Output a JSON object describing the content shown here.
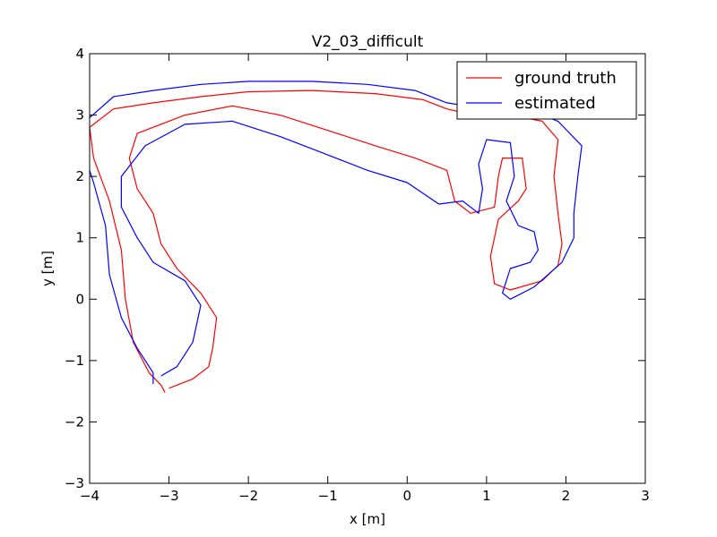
{
  "chart_data": {
    "type": "line",
    "title": "V2_03_difficult",
    "xlabel": "x [m]",
    "ylabel": "y [m]",
    "xlim": [
      -4,
      3
    ],
    "ylim": [
      -3,
      4
    ],
    "xticks": [
      -4,
      -3,
      -2,
      -1,
      0,
      1,
      2,
      3
    ],
    "yticks": [
      -3,
      -2,
      -1,
      0,
      1,
      2,
      3,
      4
    ],
    "xtick_labels": [
      "−4",
      "−3",
      "−2",
      "−1",
      "0",
      "1",
      "2",
      "3"
    ],
    "ytick_labels": [
      "−3",
      "−2",
      "−1",
      "0",
      "1",
      "2",
      "3",
      "4"
    ],
    "grid": false,
    "legend_position": "upper right",
    "series": [
      {
        "name": "ground truth",
        "color": "#ff0000",
        "points": [
          [
            -3.05,
            -1.52
          ],
          [
            -3.1,
            -1.4
          ],
          [
            -3.25,
            -1.2
          ],
          [
            -3.45,
            -0.7
          ],
          [
            -3.55,
            0.0
          ],
          [
            -3.6,
            0.8
          ],
          [
            -3.75,
            1.6
          ],
          [
            -3.95,
            2.3
          ],
          [
            -4.0,
            2.8
          ],
          [
            -3.7,
            3.1
          ],
          [
            -3.2,
            3.2
          ],
          [
            -2.6,
            3.3
          ],
          [
            -2.0,
            3.38
          ],
          [
            -1.2,
            3.4
          ],
          [
            -0.4,
            3.35
          ],
          [
            0.2,
            3.25
          ],
          [
            0.5,
            3.1
          ],
          [
            1.0,
            2.95
          ],
          [
            1.5,
            2.95
          ],
          [
            1.7,
            2.9
          ],
          [
            1.9,
            2.6
          ],
          [
            1.85,
            2.0
          ],
          [
            1.9,
            1.4
          ],
          [
            1.95,
            0.9
          ],
          [
            1.9,
            0.55
          ],
          [
            1.7,
            0.3
          ],
          [
            1.3,
            0.15
          ],
          [
            1.1,
            0.25
          ],
          [
            1.05,
            0.7
          ],
          [
            1.15,
            1.3
          ],
          [
            1.4,
            1.6
          ],
          [
            1.5,
            1.8
          ],
          [
            1.45,
            2.3
          ],
          [
            1.2,
            2.3
          ],
          [
            1.15,
            2.0
          ],
          [
            1.1,
            1.5
          ],
          [
            0.8,
            1.4
          ],
          [
            0.6,
            1.6
          ],
          [
            0.5,
            2.1
          ],
          [
            0.1,
            2.3
          ],
          [
            -0.4,
            2.5
          ],
          [
            -1.0,
            2.75
          ],
          [
            -1.6,
            3.0
          ],
          [
            -2.2,
            3.15
          ],
          [
            -2.8,
            3.0
          ],
          [
            -3.4,
            2.7
          ],
          [
            -3.5,
            2.3
          ],
          [
            -3.4,
            1.8
          ],
          [
            -3.2,
            1.4
          ],
          [
            -3.1,
            0.9
          ],
          [
            -2.9,
            0.5
          ],
          [
            -2.6,
            0.1
          ],
          [
            -2.4,
            -0.3
          ],
          [
            -2.45,
            -0.8
          ],
          [
            -2.5,
            -1.1
          ],
          [
            -2.7,
            -1.3
          ],
          [
            -3.0,
            -1.45
          ]
        ]
      },
      {
        "name": "estimated",
        "color": "#0000ff",
        "points": [
          [
            -3.2,
            -1.38
          ],
          [
            -3.2,
            -1.2
          ],
          [
            -3.4,
            -0.8
          ],
          [
            -3.6,
            -0.3
          ],
          [
            -3.75,
            0.4
          ],
          [
            -3.8,
            1.2
          ],
          [
            -3.95,
            1.9
          ],
          [
            -4.1,
            2.5
          ],
          [
            -4.05,
            2.9
          ],
          [
            -3.7,
            3.3
          ],
          [
            -3.2,
            3.4
          ],
          [
            -2.6,
            3.5
          ],
          [
            -2.0,
            3.55
          ],
          [
            -1.2,
            3.55
          ],
          [
            -0.5,
            3.5
          ],
          [
            0.1,
            3.4
          ],
          [
            0.5,
            3.2
          ],
          [
            1.0,
            3.1
          ],
          [
            1.5,
            3.1
          ],
          [
            1.9,
            2.9
          ],
          [
            2.2,
            2.5
          ],
          [
            2.15,
            2.0
          ],
          [
            2.1,
            1.4
          ],
          [
            2.1,
            1.0
          ],
          [
            1.95,
            0.6
          ],
          [
            1.6,
            0.2
          ],
          [
            1.3,
            0.0
          ],
          [
            1.2,
            0.1
          ],
          [
            1.3,
            0.5
          ],
          [
            1.55,
            0.6
          ],
          [
            1.65,
            0.8
          ],
          [
            1.6,
            1.1
          ],
          [
            1.4,
            1.2
          ],
          [
            1.25,
            1.6
          ],
          [
            1.35,
            2.0
          ],
          [
            1.3,
            2.55
          ],
          [
            1.0,
            2.6
          ],
          [
            0.9,
            2.2
          ],
          [
            0.95,
            1.8
          ],
          [
            0.9,
            1.4
          ],
          [
            0.7,
            1.6
          ],
          [
            0.4,
            1.55
          ],
          [
            0.0,
            1.9
          ],
          [
            -0.5,
            2.1
          ],
          [
            -1.0,
            2.35
          ],
          [
            -1.6,
            2.65
          ],
          [
            -2.2,
            2.9
          ],
          [
            -2.8,
            2.85
          ],
          [
            -3.3,
            2.5
          ],
          [
            -3.6,
            2.0
          ],
          [
            -3.6,
            1.5
          ],
          [
            -3.4,
            1.0
          ],
          [
            -3.2,
            0.6
          ],
          [
            -2.8,
            0.3
          ],
          [
            -2.6,
            -0.1
          ],
          [
            -2.7,
            -0.7
          ],
          [
            -2.9,
            -1.1
          ],
          [
            -3.1,
            -1.25
          ]
        ]
      }
    ]
  }
}
